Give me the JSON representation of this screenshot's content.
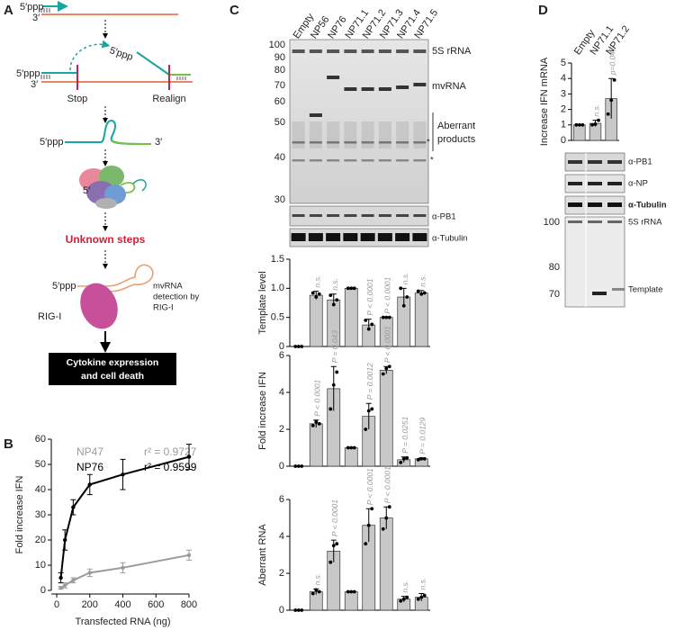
{
  "panel_labels": [
    "A",
    "B",
    "C",
    "D"
  ],
  "diagram": {
    "step1": {
      "five": "5′ppp",
      "three": "3′"
    },
    "step2": {
      "five": "5′ppp",
      "three": "3′",
      "moving": "5′ppp",
      "stop": "Stop",
      "realign": "Realign"
    },
    "step3": {
      "five": "5′ppp",
      "three": "3′"
    },
    "polymerase": "5′",
    "unknown": "Unknown steps",
    "rigi": {
      "five": "5′ppp",
      "detection": [
        "mvRNA",
        "detection by",
        "RIG-I"
      ],
      "label": "RIG-I"
    },
    "outcome": [
      "Cytokine expression",
      "and cell death"
    ]
  },
  "gel_c": {
    "markers": [
      "100",
      "90",
      "80",
      "70",
      "60",
      "50",
      "40",
      "30"
    ],
    "rrna": "5S rRNA",
    "mvrna": "mvRNA",
    "aberrant": [
      "Aberrant",
      "products"
    ],
    "stars": [
      "*",
      "*"
    ],
    "blots": [
      "α-PB1",
      "α-Tubulin"
    ]
  },
  "gel_d": {
    "blots": [
      "α-PB1",
      "α-NP",
      "α-Tubulin"
    ],
    "markers": [
      "100",
      "80",
      "70"
    ],
    "rrna": "5S rRNA",
    "template": "Template"
  },
  "chart_data": [
    {
      "type": "scatter",
      "xlabel": "Transfected RNA (ng)",
      "ylabel": "Fold increase IFN",
      "x": [
        25,
        50,
        100,
        200,
        400,
        800
      ],
      "xlim": [
        0,
        800
      ],
      "xticks": [
        0,
        200,
        400,
        600,
        800
      ],
      "ylim": [
        0,
        60
      ],
      "yticks": [
        0,
        10,
        20,
        30,
        40,
        50,
        60
      ],
      "series": [
        {
          "name": "NP47",
          "r2": "r² = 0.9727",
          "color": "#9a9a9a",
          "values": [
            1,
            2,
            4,
            7,
            9,
            14
          ],
          "errors": [
            0.5,
            1,
            1,
            1.5,
            2,
            2
          ]
        },
        {
          "name": "NP76",
          "r2": "r² = 0.9599",
          "color": "#000000",
          "values": [
            5,
            20,
            33,
            42,
            46,
            53
          ],
          "errors": [
            2,
            4,
            3,
            4,
            6,
            5
          ]
        }
      ]
    },
    {
      "type": "bar",
      "ylabel": "Template level",
      "color": "#c8c8c8",
      "categories": [
        "Empty",
        "NP56",
        "NP76",
        "NP71.1",
        "NP71.2",
        "NP71.3",
        "NP71.4",
        "NP71.5"
      ],
      "ylim": [
        0,
        1.5
      ],
      "yticks": [
        0,
        0.5,
        {
          "value": 1,
          "label": "1.0"
        },
        1.5
      ],
      "values": [
        0,
        0.88,
        0.8,
        1,
        0.37,
        0.5,
        0.85,
        0.92
      ],
      "errors": [
        0,
        0.07,
        0.1,
        0,
        0.1,
        0,
        0.15,
        0.04
      ],
      "points": [
        [
          0,
          0,
          0
        ],
        [
          0.92,
          0.85,
          0.9
        ],
        [
          0.88,
          0.72,
          0.8
        ],
        [
          1,
          1,
          1
        ],
        [
          0.45,
          0.3,
          0.38
        ],
        [
          0.5,
          0.5,
          0.5
        ],
        [
          1,
          0.7,
          0.85
        ],
        [
          0.95,
          0.9,
          0.92
        ]
      ],
      "annotations": [
        null,
        "n.s.",
        "n.s.",
        null,
        "P < 0.0001",
        "P < 0.0001",
        "n.s.",
        "n.s."
      ]
    },
    {
      "type": "bar",
      "ylabel": "Fold increase IFN",
      "color": "#c8c8c8",
      "ylim": [
        0,
        6
      ],
      "yticks": [
        0,
        2,
        4,
        6
      ],
      "values": [
        0,
        2.3,
        4.2,
        1,
        2.7,
        5.2,
        0.35,
        0.4
      ],
      "errors": [
        0,
        0.2,
        1.2,
        0,
        0.7,
        0.2,
        0.15,
        0.05
      ],
      "points": [
        [
          0,
          0,
          0
        ],
        [
          2.2,
          2.4,
          2.3
        ],
        [
          3.1,
          4.4,
          5.1
        ],
        [
          1,
          1,
          1
        ],
        [
          2,
          3,
          3.1
        ],
        [
          5,
          5.3,
          5.4
        ],
        [
          0.2,
          0.4,
          0.45
        ],
        [
          0.35,
          0.4,
          0.4
        ]
      ],
      "annotations": [
        null,
        "P < 0.0001",
        "P = 0.043",
        null,
        "P = 0.0012",
        "P < 0.0001",
        "P = 0.0251",
        "P = 0.0129"
      ]
    },
    {
      "type": "bar",
      "ylabel": "Aberrant RNA",
      "color": "#c8c8c8",
      "ylim": [
        0,
        6
      ],
      "yticks": [
        0,
        2,
        4,
        6
      ],
      "values": [
        0,
        1,
        3.2,
        1,
        4.6,
        5,
        0.6,
        0.7
      ],
      "errors": [
        0,
        0.15,
        0.6,
        0,
        0.9,
        0.6,
        0.15,
        0.2
      ],
      "points": [
        [
          0,
          0,
          0
        ],
        [
          0.9,
          1.1,
          1
        ],
        [
          2.6,
          3.5,
          3.6
        ],
        [
          1,
          1,
          1
        ],
        [
          3.6,
          4.6,
          5.5
        ],
        [
          4.4,
          5,
          5.6
        ],
        [
          0.5,
          0.6,
          0.7
        ],
        [
          0.6,
          0.7,
          0.8
        ]
      ],
      "annotations": [
        null,
        "n.s.",
        "P < 0.0001",
        null,
        "P < 0.0001",
        "P < 0.0001",
        "n.s.",
        "n.s."
      ]
    },
    {
      "type": "bar",
      "ylabel": "Increase IFN mRNA",
      "color": "#c8c8c8",
      "categories": [
        "Empty",
        "NP71.1",
        "NP71.2"
      ],
      "ylim": [
        0,
        5
      ],
      "yticks": [
        0,
        1,
        2,
        3,
        4,
        5
      ],
      "values": [
        1,
        1.1,
        2.7
      ],
      "errors": [
        0,
        0.2,
        1.3
      ],
      "points": [
        [
          1,
          1,
          1
        ],
        [
          1,
          1.05,
          1.3
        ],
        [
          1.7,
          2.6,
          3.9
        ]
      ],
      "annotations": [
        null,
        "n.s.",
        "p=0.047"
      ]
    }
  ]
}
